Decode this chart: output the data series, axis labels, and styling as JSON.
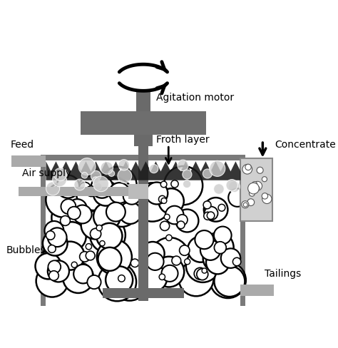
{
  "bg_color": "#ffffff",
  "tank_gray": "#7a7a7a",
  "shaft_gray": "#6a6a6a",
  "motor_gray": "#6e6e6e",
  "pipe_gray": "#aaaaaa",
  "froth_dark": "#2a2a2a",
  "conc_gray": "#b0b0b0",
  "labels": {
    "agitation_motor": "Agitation motor",
    "air_supply": "Air supply",
    "froth_layer": "Froth layer",
    "feed": "Feed",
    "bubbles": "Bubbles",
    "concentrate": "Concentrate",
    "tailings": "Tailings"
  },
  "figsize": [
    4.74,
    4.89
  ],
  "dpi": 100
}
